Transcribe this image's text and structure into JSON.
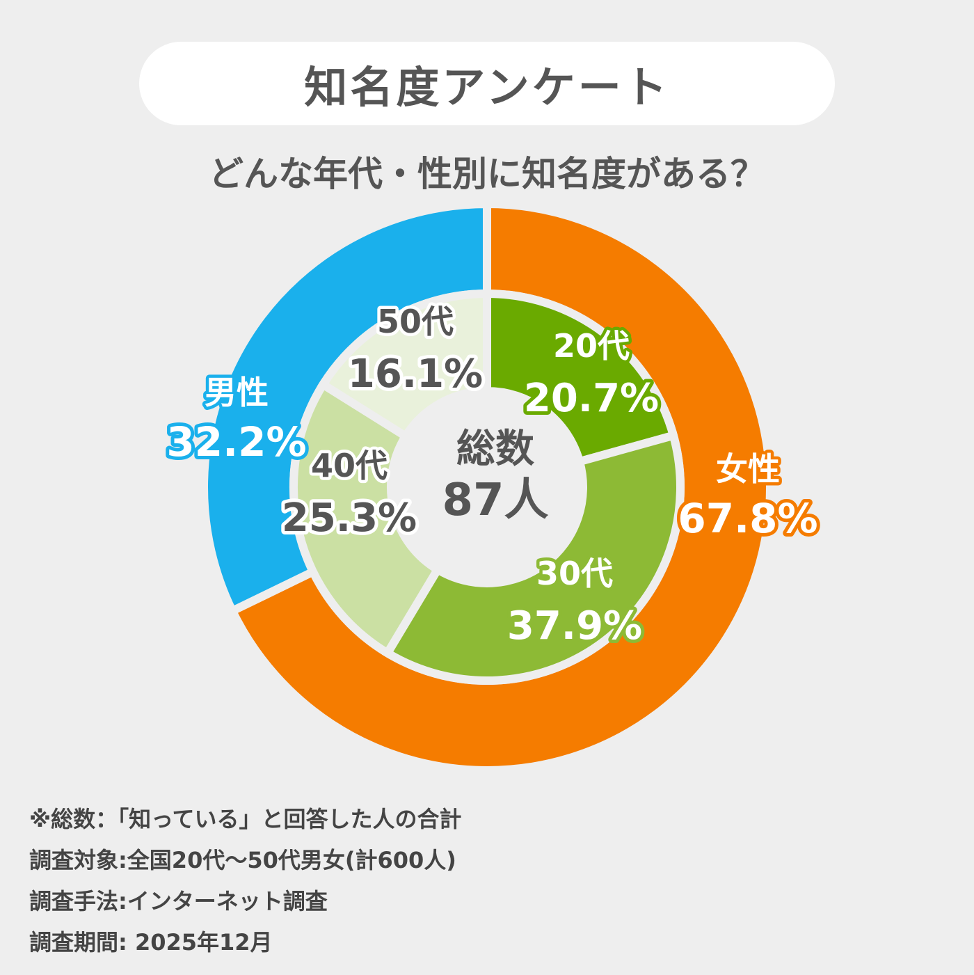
{
  "title": "知名度アンケート",
  "subtitle": "どんな年代・性別に知名度がある？",
  "center_label": {
    "line1": "総数",
    "line2": "87人"
  },
  "chart_data": [
    {
      "type": "pie",
      "ring": "outer",
      "categories": [
        "女性",
        "男性"
      ],
      "values": [
        67.8,
        32.2
      ],
      "labels": [
        "67.8%",
        "32.2%"
      ],
      "colors": [
        "#f57c00",
        "#1ab0ec"
      ],
      "label_colors": [
        "#f57c00",
        "#1ab0ec"
      ]
    },
    {
      "type": "pie",
      "ring": "inner",
      "categories": [
        "20代",
        "30代",
        "40代",
        "50代"
      ],
      "values": [
        20.7,
        37.9,
        25.3,
        16.1
      ],
      "labels": [
        "20.7%",
        "37.9%",
        "25.3%",
        "16.1%"
      ],
      "colors": [
        "#6aaa00",
        "#8dba35",
        "#cbe0a3",
        "#e9f1db"
      ],
      "label_colors": [
        "#6aaa00",
        "#8dba35",
        "#555555",
        "#555555"
      ]
    }
  ],
  "notes": [
    "※総数：「知っている」と回答した人の合計",
    "調査対象:全国20代～50代男女(計600人)",
    "調査手法:インターネット調査",
    "調査期間: 2025年12月"
  ]
}
